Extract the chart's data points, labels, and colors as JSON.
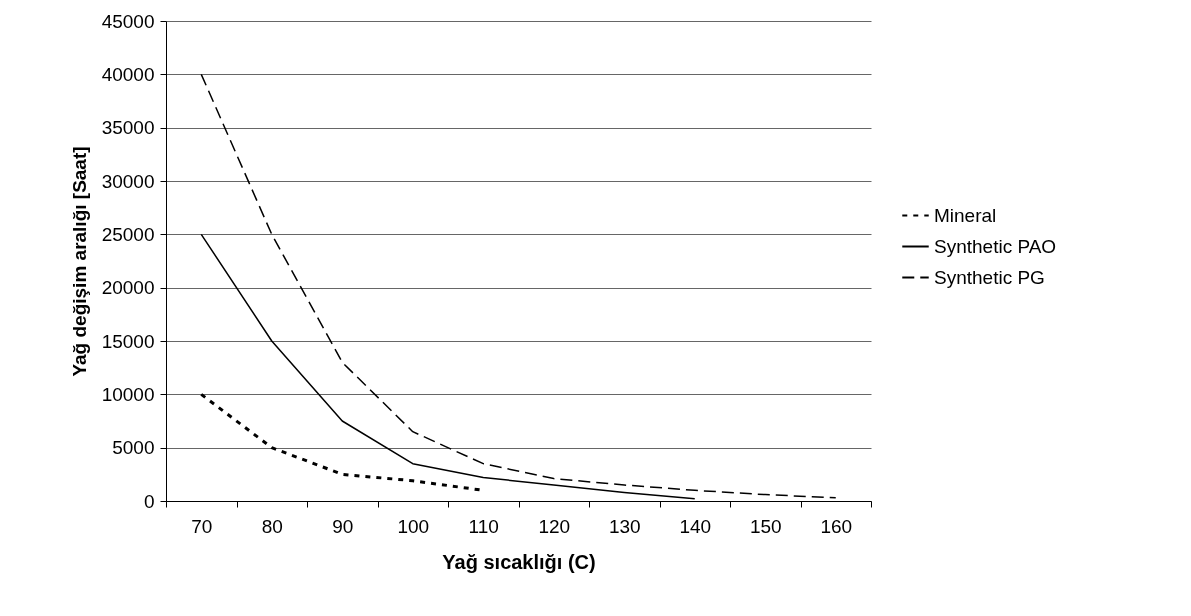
{
  "chart_data": {
    "type": "line",
    "xlabel": "Yağ sıcaklığı (C)",
    "ylabel": "Yağ değişim aralığı [Saat]",
    "categories": [
      "70",
      "80",
      "90",
      "100",
      "110",
      "120",
      "130",
      "140",
      "150",
      "160"
    ],
    "series": [
      {
        "name": "Mineral",
        "color": "#000000",
        "line_style": "dotted",
        "values": [
          10000,
          5000,
          2500,
          1900,
          1000,
          null,
          null,
          null,
          null,
          null
        ]
      },
      {
        "name": "Synthetic PAO",
        "color": "#000000",
        "line_style": "solid",
        "values": [
          25000,
          15000,
          7500,
          3500,
          2200,
          1500,
          800,
          200,
          null,
          null
        ]
      },
      {
        "name": "Synthetic PG",
        "color": "#000000",
        "line_style": "dashed",
        "values": [
          40000,
          25000,
          13000,
          6500,
          3500,
          2100,
          1500,
          1000,
          600,
          300
        ]
      }
    ],
    "ylim": [
      0,
      45000
    ],
    "yticks": [
      0,
      5000,
      10000,
      15000,
      20000,
      25000,
      30000,
      35000,
      40000,
      45000
    ],
    "grid": "y",
    "legend": "right",
    "marker": "none"
  }
}
